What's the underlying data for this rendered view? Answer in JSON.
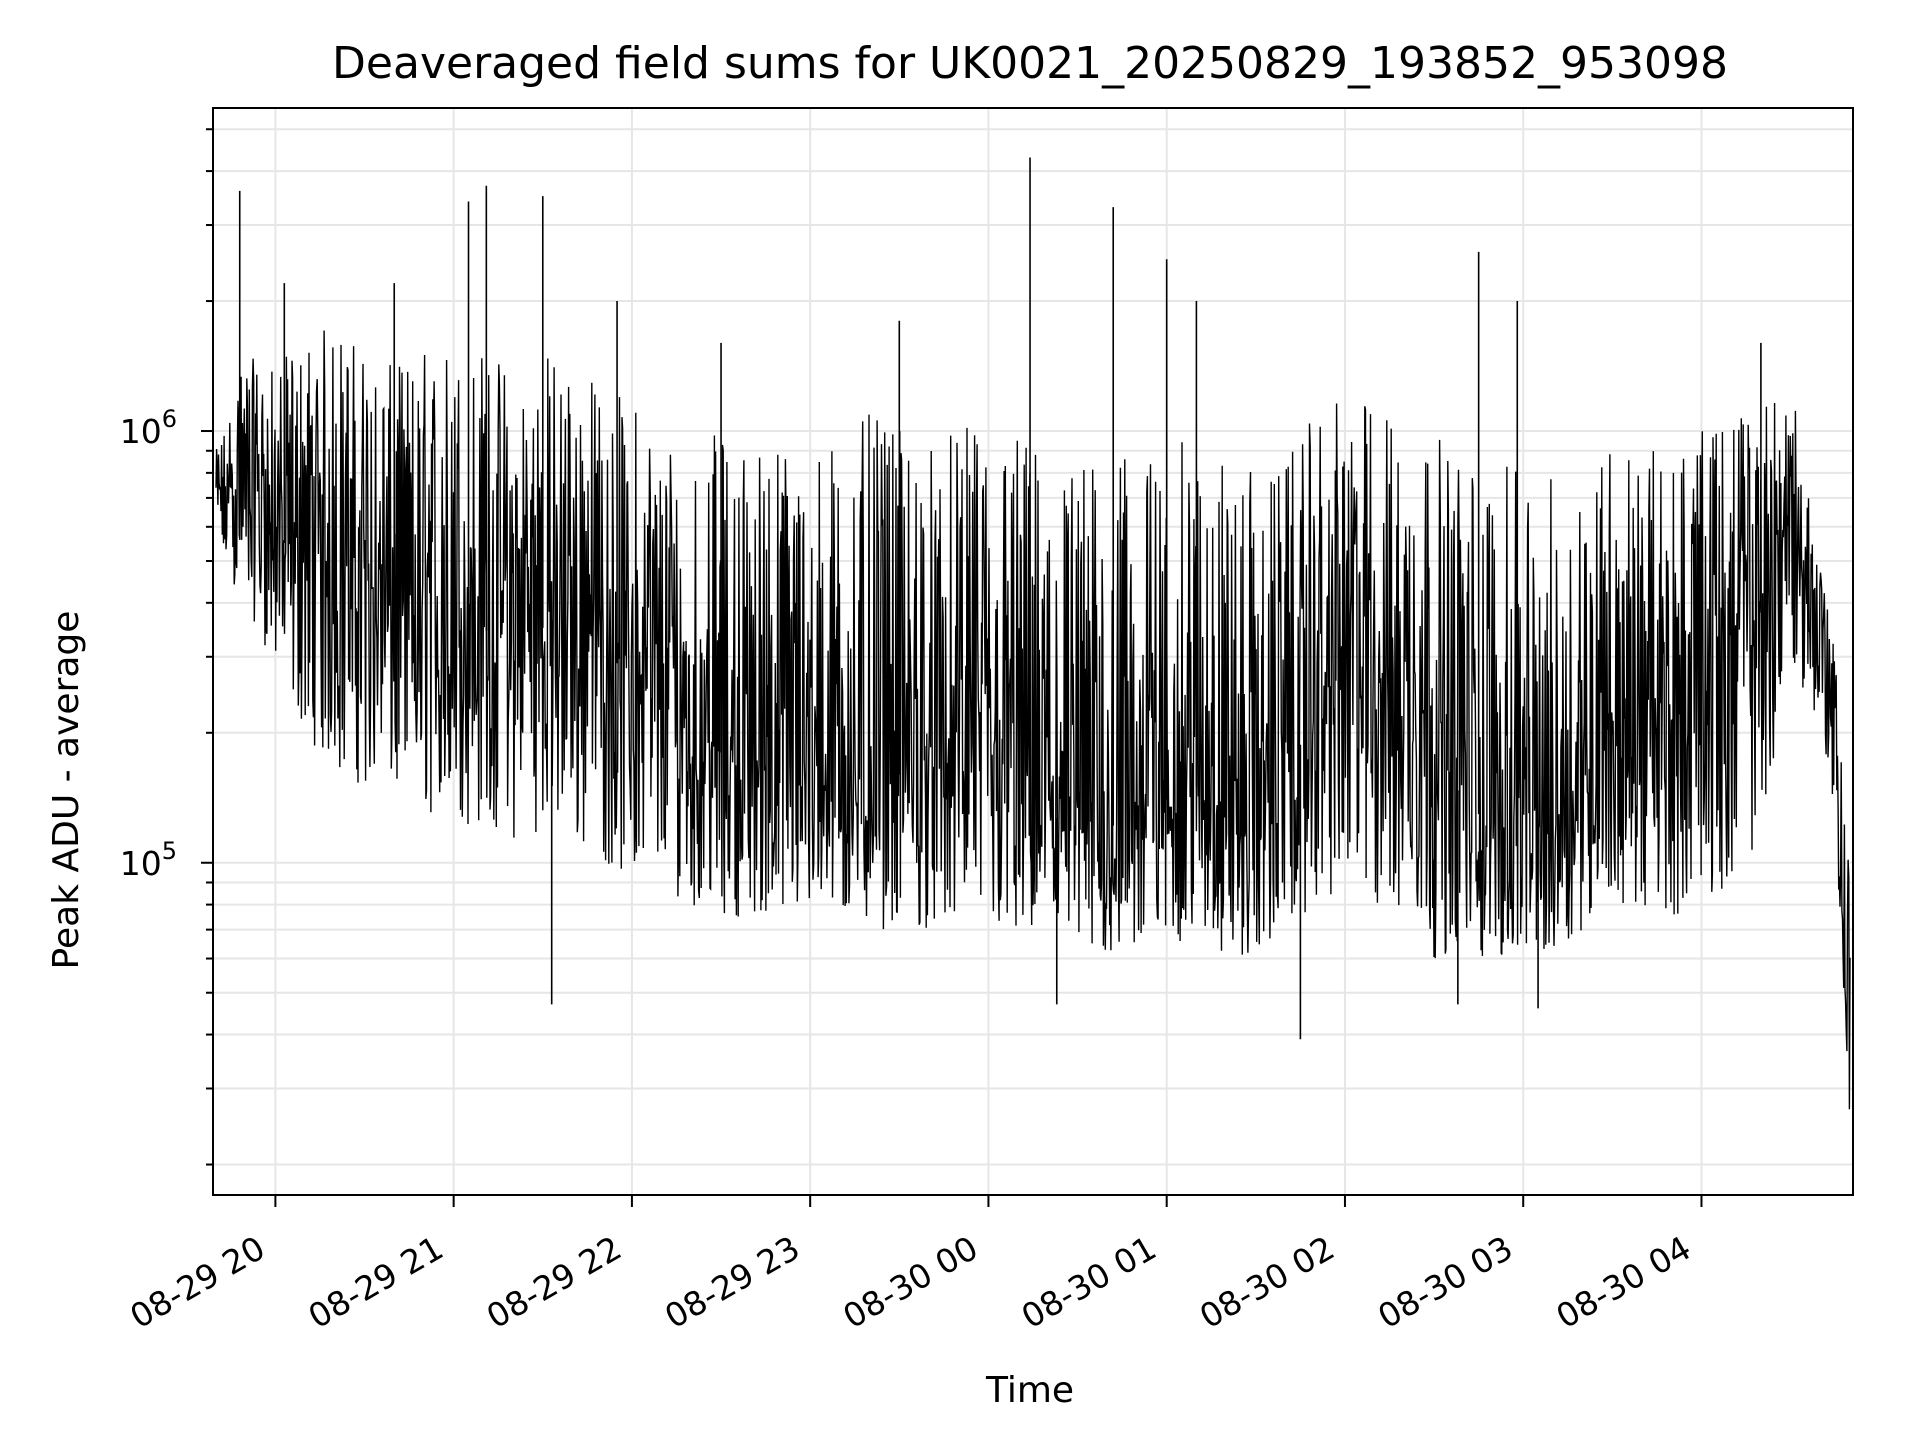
{
  "chart_data": {
    "type": "line",
    "title": "Deaveraged field sums for UK0021_20250829_193852_953098",
    "xlabel": "Time",
    "ylabel": "Peak ADU - average",
    "yscale": "log",
    "xlim": [
      "2025-08-29 19:39",
      "2025-08-30 04:51"
    ],
    "ylim": [
      17000,
      5600000
    ],
    "grid": true,
    "line_color": "#000000",
    "grid_color": "#e6e6e6",
    "x_ticks": [
      {
        "value": "2025-08-29 20:00",
        "label": "08-29 20"
      },
      {
        "value": "2025-08-29 21:00",
        "label": "08-29 21"
      },
      {
        "value": "2025-08-29 22:00",
        "label": "08-29 22"
      },
      {
        "value": "2025-08-29 23:00",
        "label": "08-29 23"
      },
      {
        "value": "2025-08-30 00:00",
        "label": "08-30 00"
      },
      {
        "value": "2025-08-30 01:00",
        "label": "08-30 01"
      },
      {
        "value": "2025-08-30 02:00",
        "label": "08-30 02"
      },
      {
        "value": "2025-08-30 03:00",
        "label": "08-30 03"
      },
      {
        "value": "2025-08-30 04:00",
        "label": "08-30 04"
      }
    ],
    "y_ticks": [
      {
        "value": 100000,
        "base": "10",
        "exp": "5"
      },
      {
        "value": 1000000,
        "base": "10",
        "exp": "6"
      }
    ],
    "x": [
      "2025-08-29 19:40",
      "2025-08-29 19:50",
      "2025-08-29 20:00",
      "2025-08-29 20:10",
      "2025-08-29 20:20",
      "2025-08-29 20:30",
      "2025-08-29 20:40",
      "2025-08-29 20:50",
      "2025-08-29 21:00",
      "2025-08-29 21:10",
      "2025-08-29 21:20",
      "2025-08-29 21:30",
      "2025-08-29 21:40",
      "2025-08-29 21:50",
      "2025-08-29 22:00",
      "2025-08-29 22:10",
      "2025-08-29 22:20",
      "2025-08-29 22:30",
      "2025-08-29 22:40",
      "2025-08-29 22:50",
      "2025-08-29 23:00",
      "2025-08-29 23:10",
      "2025-08-29 23:20",
      "2025-08-29 23:30",
      "2025-08-29 23:40",
      "2025-08-29 23:50",
      "2025-08-30 00:00",
      "2025-08-30 00:10",
      "2025-08-30 00:20",
      "2025-08-30 00:30",
      "2025-08-30 00:40",
      "2025-08-30 00:50",
      "2025-08-30 01:00",
      "2025-08-30 01:10",
      "2025-08-30 01:20",
      "2025-08-30 01:30",
      "2025-08-30 01:40",
      "2025-08-30 01:50",
      "2025-08-30 02:00",
      "2025-08-30 02:10",
      "2025-08-30 02:20",
      "2025-08-30 02:30",
      "2025-08-30 02:40",
      "2025-08-30 02:50",
      "2025-08-30 03:00",
      "2025-08-30 03:10",
      "2025-08-30 03:20",
      "2025-08-30 03:30",
      "2025-08-30 03:40",
      "2025-08-30 03:50",
      "2025-08-30 04:00",
      "2025-08-30 04:10",
      "2025-08-30 04:20",
      "2025-08-30 04:30",
      "2025-08-30 04:40",
      "2025-08-30 04:45",
      "2025-08-30 04:50"
    ],
    "y": [
      700000,
      750000,
      600000,
      450000,
      500000,
      450000,
      380000,
      350000,
      300000,
      350000,
      300000,
      350000,
      400000,
      300000,
      280000,
      220000,
      200000,
      180000,
      170000,
      160000,
      170000,
      160000,
      150000,
      160000,
      170000,
      170000,
      160000,
      150000,
      130000,
      120000,
      120000,
      130000,
      140000,
      150000,
      130000,
      120000,
      160000,
      220000,
      280000,
      300000,
      250000,
      180000,
      140000,
      120000,
      110000,
      120000,
      150000,
      220000,
      180000,
      200000,
      260000,
      320000,
      380000,
      600000,
      380000,
      200000,
      25000
    ],
    "y_high": [
      900000,
      1500000,
      1400000,
      1700000,
      1800000,
      1600000,
      1400000,
      1600000,
      1700000,
      1600000,
      1500000,
      1600000,
      1500000,
      1300000,
      1200000,
      1100000,
      1000000,
      1000000,
      1000000,
      1000000,
      950000,
      1000000,
      1100000,
      1000000,
      1000000,
      1000000,
      1100000,
      1000000,
      950000,
      900000,
      850000,
      900000,
      900000,
      1000000,
      900000,
      800000,
      850000,
      1100000,
      1200000,
      1200000,
      1100000,
      1000000,
      900000,
      850000,
      800000,
      800000,
      900000,
      1000000,
      900000,
      950000,
      1000000,
      1100000,
      1200000,
      1300000,
      500000,
      300000,
      100000
    ],
    "y_low": [
      500000,
      400000,
      280000,
      200000,
      160000,
      150000,
      140000,
      130000,
      120000,
      120000,
      110000,
      120000,
      110000,
      100000,
      90000,
      85000,
      80000,
      75000,
      75000,
      75000,
      75000,
      75000,
      70000,
      70000,
      70000,
      70000,
      70000,
      65000,
      65000,
      60000,
      60000,
      62000,
      65000,
      65000,
      60000,
      60000,
      70000,
      80000,
      80000,
      75000,
      65000,
      60000,
      58000,
      60000,
      60000,
      62000,
      70000,
      80000,
      75000,
      75000,
      80000,
      90000,
      110000,
      300000,
      200000,
      120000,
      25000
    ],
    "spikes": [
      {
        "x": "2025-08-29 19:48",
        "y": 3600000
      },
      {
        "x": "2025-08-29 20:03",
        "y": 2200000
      },
      {
        "x": "2025-08-29 20:40",
        "y": 2200000
      },
      {
        "x": "2025-08-29 21:05",
        "y": 3400000
      },
      {
        "x": "2025-08-29 21:11",
        "y": 3700000
      },
      {
        "x": "2025-08-29 21:30",
        "y": 3500000
      },
      {
        "x": "2025-08-29 21:55",
        "y": 2000000
      },
      {
        "x": "2025-08-29 22:30",
        "y": 1600000
      },
      {
        "x": "2025-08-29 23:30",
        "y": 1800000
      },
      {
        "x": "2025-08-30 00:14",
        "y": 4300000
      },
      {
        "x": "2025-08-30 00:42",
        "y": 3300000
      },
      {
        "x": "2025-08-30 01:00",
        "y": 2500000
      },
      {
        "x": "2025-08-30 01:10",
        "y": 2000000
      },
      {
        "x": "2025-08-30 02:45",
        "y": 2600000
      },
      {
        "x": "2025-08-30 02:58",
        "y": 2000000
      },
      {
        "x": "2025-08-30 04:20",
        "y": 1600000
      },
      {
        "x": "2025-08-29 21:33",
        "y": 47000
      },
      {
        "x": "2025-08-30 00:23",
        "y": 47000
      },
      {
        "x": "2025-08-30 01:45",
        "y": 39000
      },
      {
        "x": "2025-08-30 02:38",
        "y": 47000
      },
      {
        "x": "2025-08-30 03:05",
        "y": 46000
      }
    ]
  }
}
